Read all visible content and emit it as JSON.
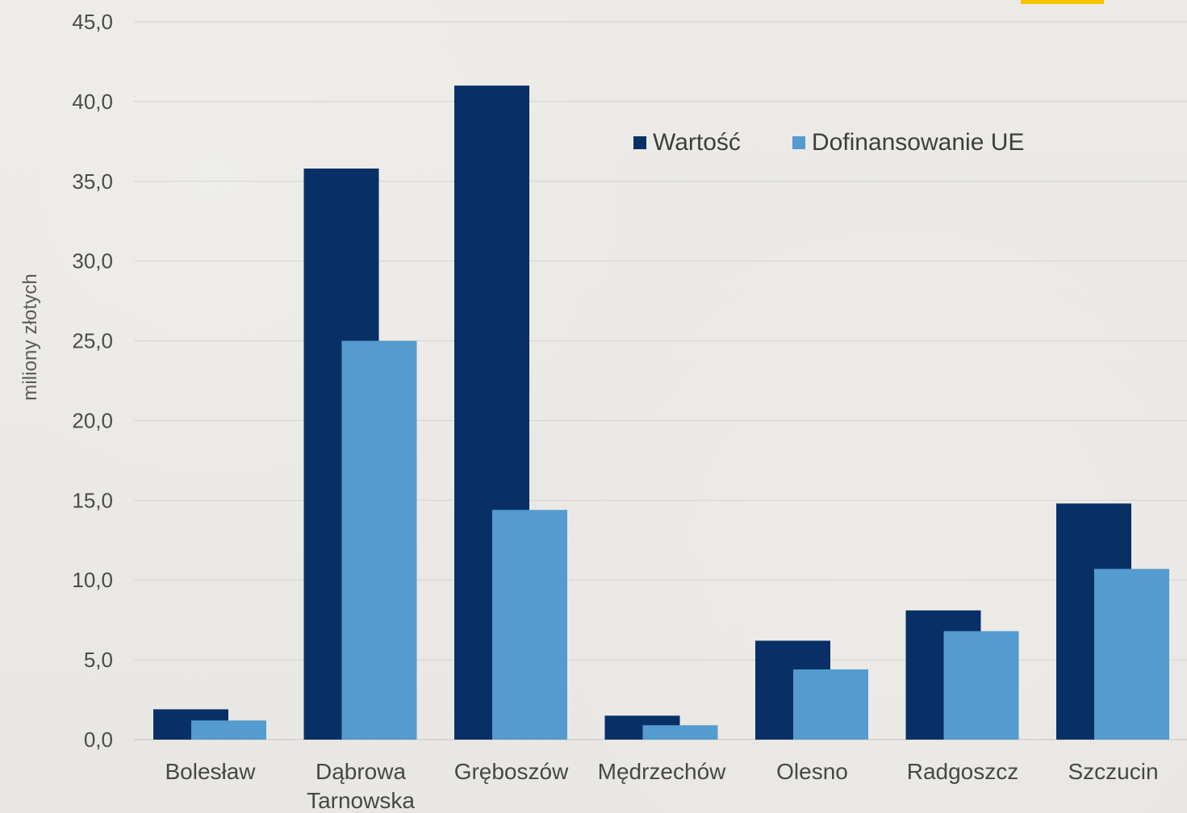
{
  "chart_data": {
    "type": "bar",
    "ylabel": "miliony złotych",
    "ylim": [
      0,
      45
    ],
    "yticks": [
      "0,0",
      "5,0",
      "10,0",
      "15,0",
      "20,0",
      "25,0",
      "30,0",
      "35,0",
      "40,0",
      "45,0"
    ],
    "categories": [
      "Bolesław",
      "Dąbrowa Tarnowska",
      "Gręboszów",
      "Mędrzechów",
      "Olesno",
      "Radgoszcz",
      "Szczucin"
    ],
    "category_label_lines": [
      [
        "Bolesław"
      ],
      [
        "Dąbrowa",
        "Tarnowska"
      ],
      [
        "Gręboszów"
      ],
      [
        "Mędrzechów"
      ],
      [
        "Olesno"
      ],
      [
        "Radgoszcz"
      ],
      [
        "Szczucin"
      ]
    ],
    "series": [
      {
        "name": "Wartość",
        "color": "#083066",
        "values": [
          1.9,
          35.8,
          41.0,
          1.5,
          6.2,
          8.1,
          14.8
        ]
      },
      {
        "name": "Dofinansowanie UE",
        "color": "#549ccf",
        "values": [
          1.2,
          25.0,
          14.4,
          0.9,
          4.4,
          6.8,
          10.7
        ]
      }
    ],
    "grid": true,
    "legend_position": "top-right"
  }
}
